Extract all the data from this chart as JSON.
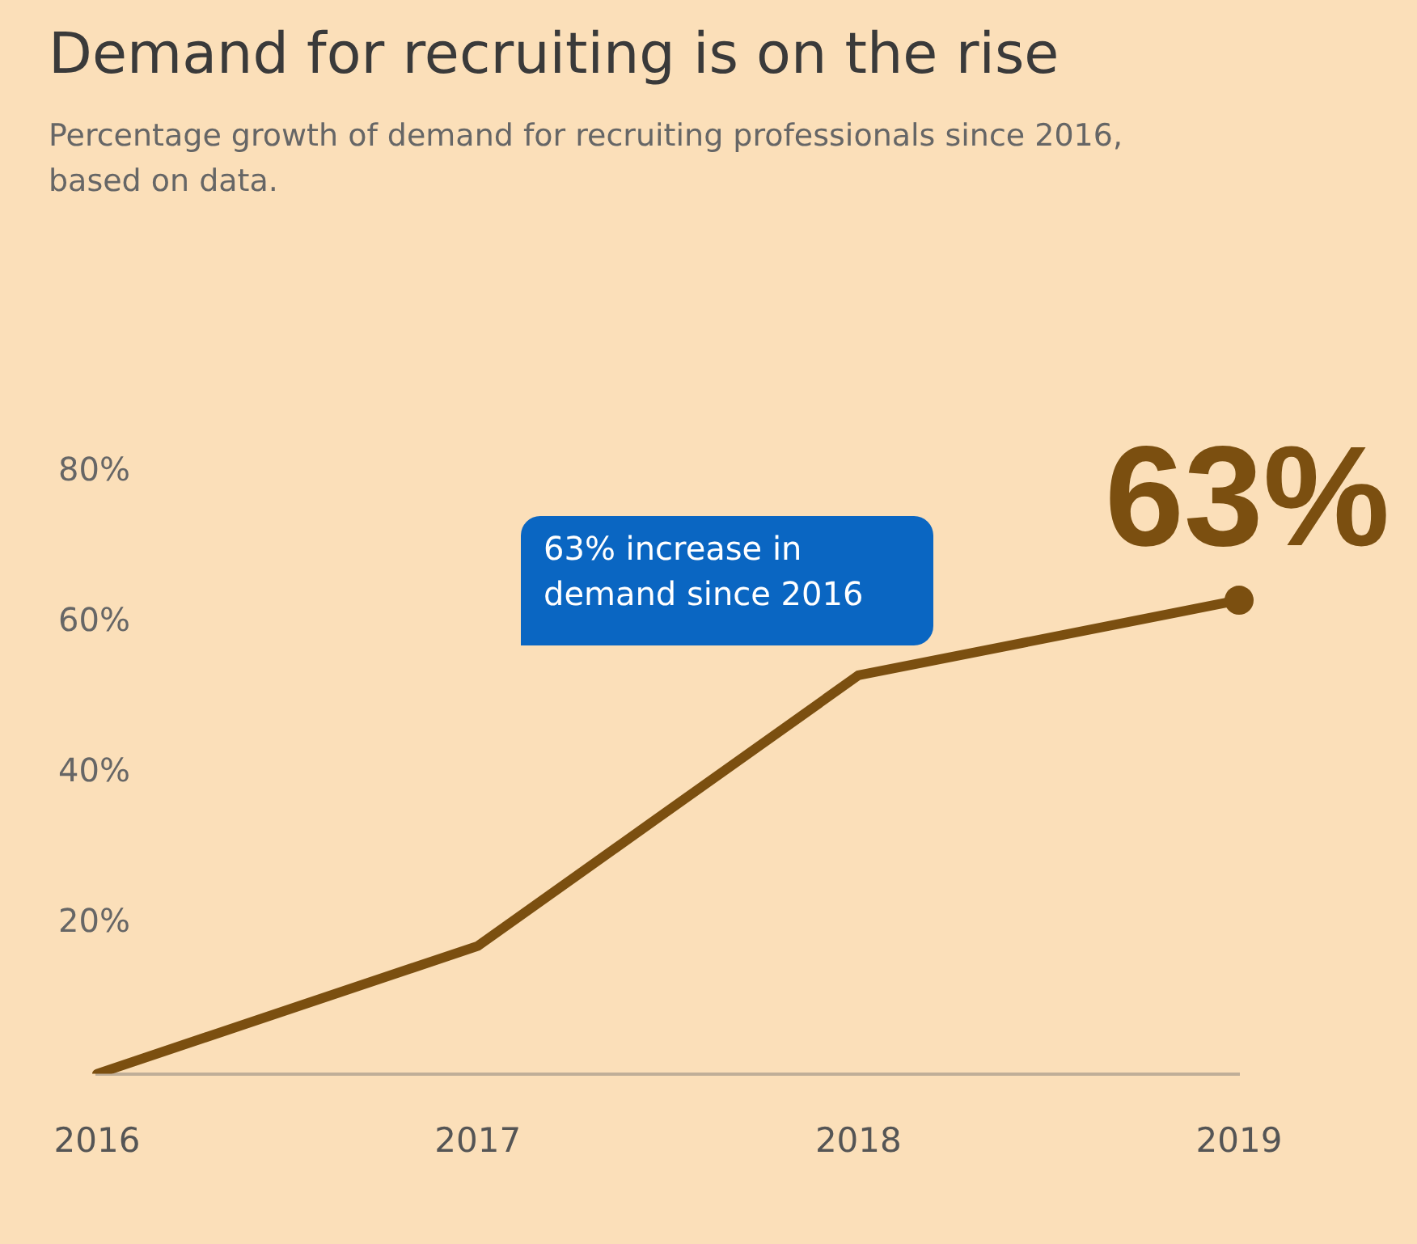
{
  "chart_data": {
    "type": "line",
    "title": "Demand for recruiting is on the rise",
    "subtitle": "Percentage growth of demand for recruiting professionals since 2016, based on data.",
    "categories": [
      "2016",
      "2017",
      "2018",
      "2019"
    ],
    "series": [
      {
        "color": "#7b4f10",
        "values": [
          0,
          17,
          53,
          63
        ],
        "value_labels": [
          null,
          null,
          null,
          "63%"
        ]
      }
    ],
    "ylim": [
      0,
      80
    ],
    "yticks": [
      {
        "value": 20,
        "label": "20%"
      },
      {
        "value": 40,
        "label": "40%"
      },
      {
        "value": 60,
        "label": "60%"
      },
      {
        "value": 80,
        "label": "80%"
      }
    ],
    "annotations": [
      "63% increase in demand since 2016"
    ],
    "grid": false,
    "legend": false
  }
}
